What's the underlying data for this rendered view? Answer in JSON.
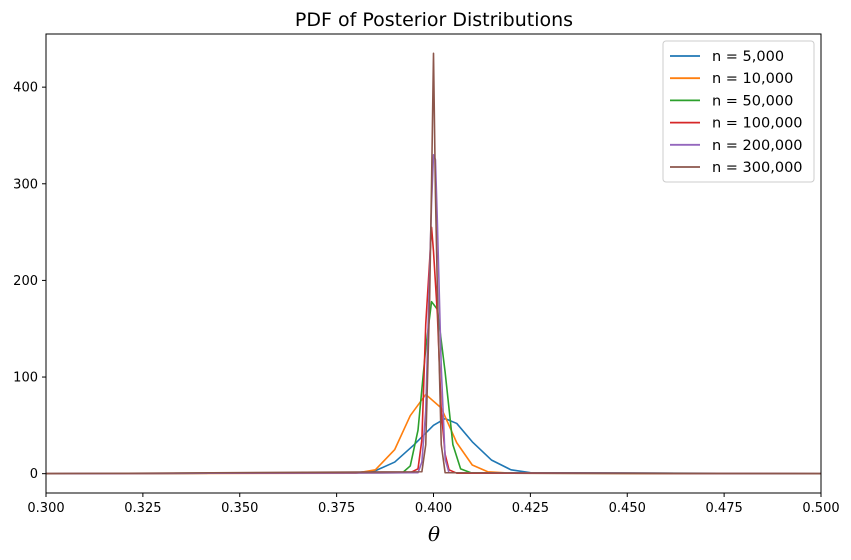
{
  "chart_data": {
    "type": "line",
    "title": "PDF of Posterior Distributions",
    "xlabel": "θ",
    "ylabel": "",
    "xlim": [
      0.3,
      0.5
    ],
    "ylim": [
      -20,
      455
    ],
    "x_ticks": [
      0.3,
      0.325,
      0.35,
      0.375,
      0.4,
      0.425,
      0.45,
      0.475,
      0.5
    ],
    "x_tick_labels": [
      "0.300",
      "0.325",
      "0.350",
      "0.375",
      "0.400",
      "0.425",
      "0.450",
      "0.475",
      "0.500"
    ],
    "y_ticks": [
      0,
      100,
      200,
      300,
      400
    ],
    "y_tick_labels": [
      "0",
      "100",
      "200",
      "300",
      "400"
    ],
    "grid": false,
    "legend_position": "top-right",
    "series": [
      {
        "name": "n = 5,000",
        "color": "#1f77b4",
        "x": [
          0.3,
          0.38,
          0.385,
          0.39,
          0.395,
          0.4,
          0.403,
          0.406,
          0.41,
          0.415,
          0.42,
          0.425,
          0.5
        ],
        "y": [
          0,
          1,
          3,
          12,
          30,
          50,
          57,
          52,
          33,
          14,
          4,
          1,
          0
        ]
      },
      {
        "name": "n = 10,000",
        "color": "#ff7f0e",
        "x": [
          0.3,
          0.38,
          0.385,
          0.39,
          0.394,
          0.398,
          0.402,
          0.406,
          0.41,
          0.414,
          0.42,
          0.5
        ],
        "y": [
          0,
          0.5,
          4,
          25,
          60,
          82,
          68,
          32,
          9,
          2,
          0.5,
          0
        ]
      },
      {
        "name": "n = 50,000",
        "color": "#2ca02c",
        "x": [
          0.3,
          0.392,
          0.394,
          0.396,
          0.398,
          0.3995,
          0.401,
          0.403,
          0.405,
          0.407,
          0.41,
          0.5
        ],
        "y": [
          0,
          1,
          8,
          45,
          130,
          178,
          170,
          105,
          30,
          5,
          0.5,
          0
        ]
      },
      {
        "name": "n = 100,000",
        "color": "#d62728",
        "x": [
          0.3,
          0.394,
          0.396,
          0.397,
          0.398,
          0.399,
          0.3995,
          0.4,
          0.401,
          0.402,
          0.403,
          0.404,
          0.406,
          0.5
        ],
        "y": [
          0,
          1,
          5,
          35,
          155,
          220,
          255,
          230,
          165,
          65,
          20,
          4,
          0.5,
          0
        ]
      },
      {
        "name": "n = 200,000",
        "color": "#9467bd",
        "x": [
          0.3,
          0.396,
          0.397,
          0.398,
          0.399,
          0.3995,
          0.4,
          0.4005,
          0.401,
          0.402,
          0.403,
          0.404,
          0.5
        ],
        "y": [
          0,
          1,
          12,
          65,
          210,
          280,
          330,
          325,
          260,
          110,
          15,
          1,
          0
        ]
      },
      {
        "name": "n = 300,000",
        "color": "#8c564b",
        "x": [
          0.3,
          0.397,
          0.398,
          0.399,
          0.3995,
          0.4,
          0.4005,
          0.401,
          0.402,
          0.403,
          0.5
        ],
        "y": [
          0,
          2,
          30,
          180,
          300,
          435,
          290,
          190,
          30,
          1,
          0
        ]
      }
    ]
  }
}
